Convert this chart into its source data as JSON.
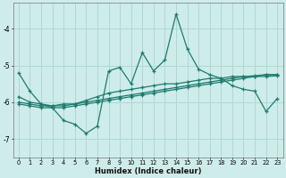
{
  "xlabel": "Humidex (Indice chaleur)",
  "background_color": "#ceecea",
  "grid_color": "#aed8d4",
  "line_color": "#1e7b6e",
  "x_data": [
    0,
    1,
    2,
    3,
    4,
    5,
    6,
    7,
    8,
    9,
    10,
    11,
    12,
    13,
    14,
    15,
    16,
    17,
    18,
    19,
    20,
    21,
    22,
    23
  ],
  "series1": [
    -5.2,
    -5.7,
    -6.05,
    -6.15,
    -6.5,
    -6.6,
    -6.85,
    -6.65,
    -5.15,
    -5.05,
    -5.5,
    -4.65,
    -5.15,
    -4.85,
    -3.6,
    -4.55,
    -5.1,
    -5.25,
    -5.35,
    -5.55,
    -5.65,
    -5.7,
    -6.25,
    -5.9
  ],
  "series2": [
    -5.85,
    -6.0,
    -6.05,
    -6.1,
    -6.05,
    -6.05,
    -5.95,
    -5.85,
    -5.75,
    -5.7,
    -5.65,
    -5.6,
    -5.55,
    -5.5,
    -5.5,
    -5.45,
    -5.4,
    -5.35,
    -5.35,
    -5.3,
    -5.3,
    -5.3,
    -5.25,
    -5.25
  ],
  "series3": [
    -6.0,
    -6.05,
    -6.1,
    -6.1,
    -6.1,
    -6.05,
    -6.0,
    -5.95,
    -5.9,
    -5.85,
    -5.8,
    -5.75,
    -5.7,
    -5.65,
    -5.6,
    -5.55,
    -5.5,
    -5.45,
    -5.4,
    -5.35,
    -5.3,
    -5.28,
    -5.25,
    -5.25
  ],
  "series4": [
    -6.05,
    -6.1,
    -6.15,
    -6.15,
    -6.15,
    -6.1,
    -6.05,
    -6.0,
    -5.95,
    -5.9,
    -5.85,
    -5.8,
    -5.75,
    -5.7,
    -5.65,
    -5.6,
    -5.55,
    -5.5,
    -5.45,
    -5.4,
    -5.35,
    -5.3,
    -5.3,
    -5.28
  ],
  "ylim": [
    -7.5,
    -3.3
  ],
  "yticks": [
    -7,
    -6,
    -5,
    -4
  ],
  "xlim": [
    -0.5,
    23.5
  ]
}
